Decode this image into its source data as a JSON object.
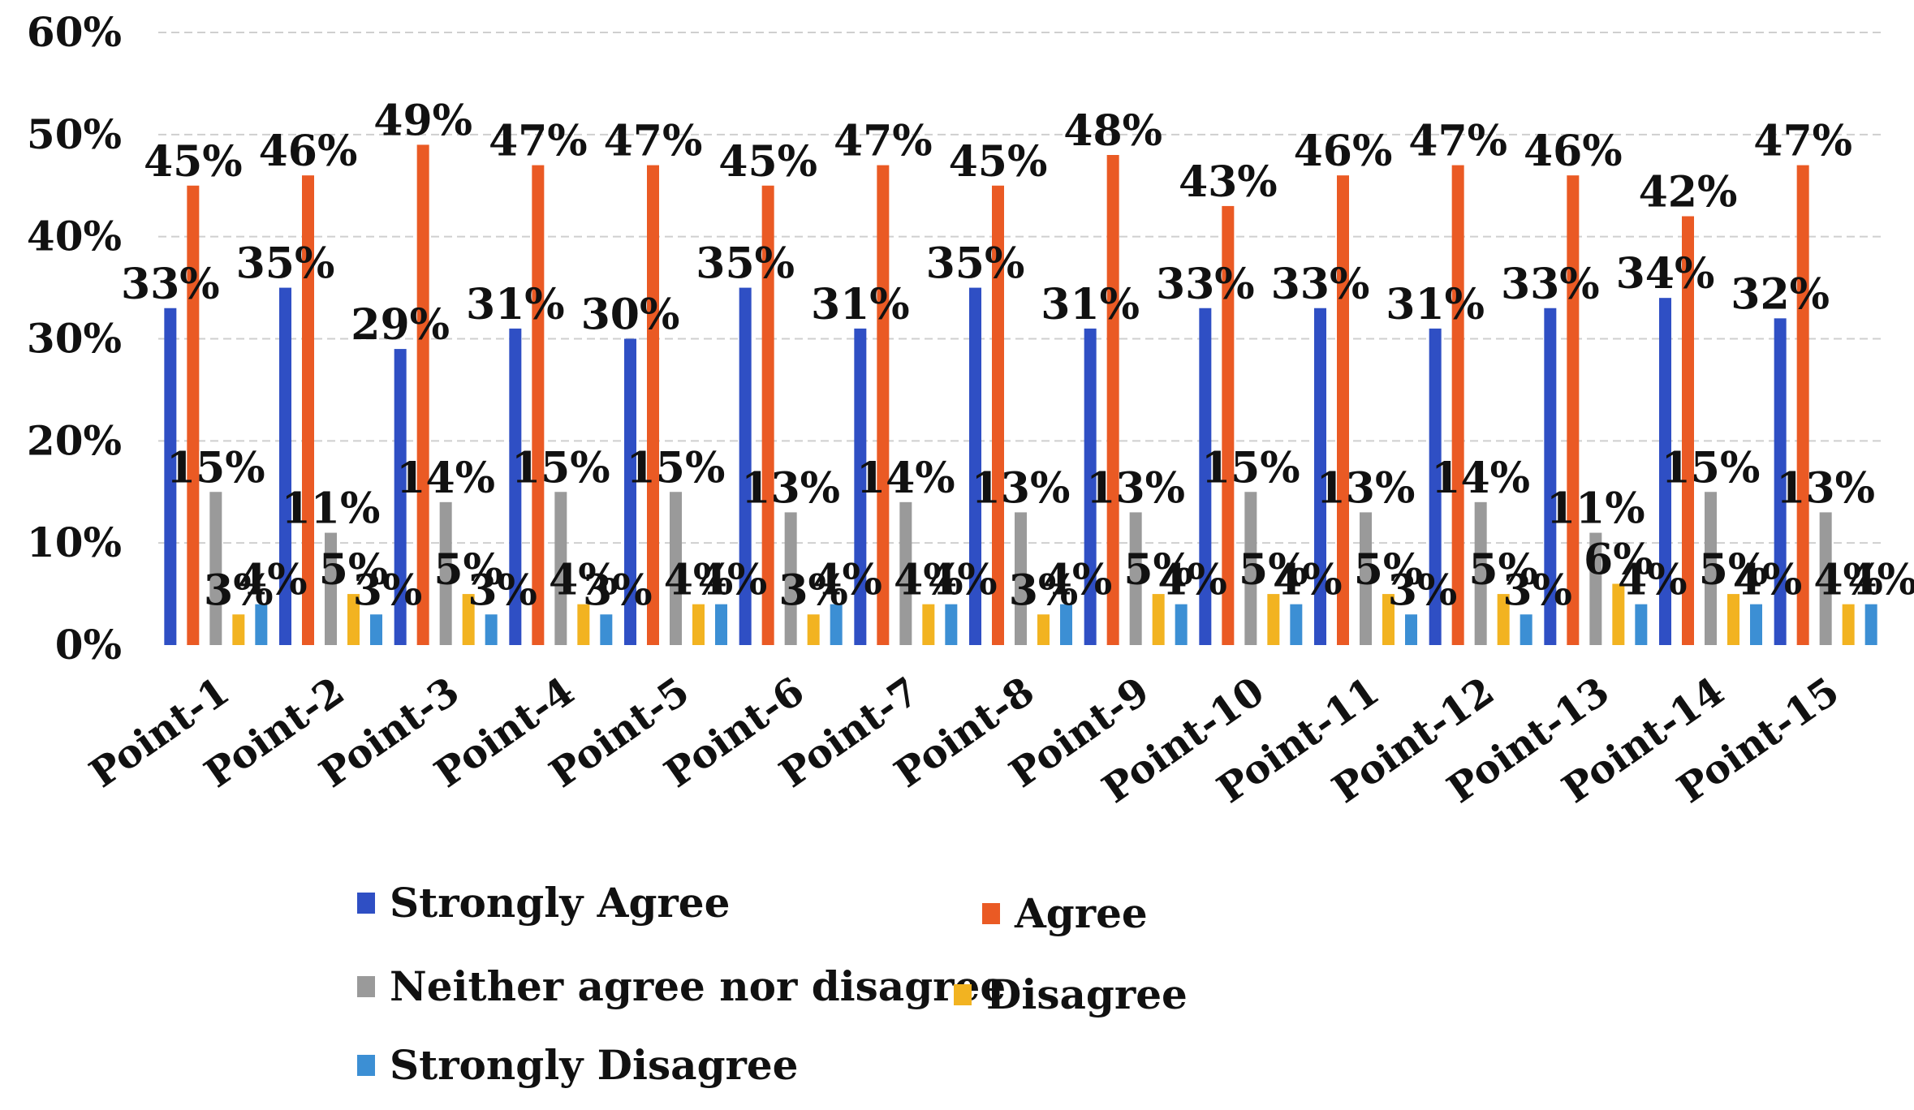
{
  "chart_data": {
    "type": "bar",
    "categories": [
      "Point-1",
      "Point-2",
      "Point-3",
      "Point-4",
      "Point-5",
      "Point-6",
      "Point-7",
      "Point-8",
      "Point-9",
      "Point-10",
      "Point-11",
      "Point-12",
      "Point-13",
      "Point-14",
      "Point-15"
    ],
    "series": [
      {
        "name": "Strongly Agree",
        "color": "#2f4fc4",
        "values": [
          33,
          35,
          29,
          31,
          30,
          35,
          31,
          35,
          31,
          33,
          33,
          31,
          33,
          34,
          32
        ]
      },
      {
        "name": "Agree",
        "color": "#ea5a24",
        "values": [
          45,
          46,
          49,
          47,
          47,
          45,
          47,
          45,
          48,
          43,
          46,
          47,
          46,
          42,
          47
        ]
      },
      {
        "name": "Neither agree nor disagree",
        "color": "#9a9a9a",
        "values": [
          15,
          11,
          14,
          15,
          15,
          13,
          14,
          13,
          13,
          15,
          13,
          14,
          11,
          15,
          13
        ]
      },
      {
        "name": "Disagree",
        "color": "#f2b321",
        "values": [
          3,
          5,
          5,
          4,
          4,
          3,
          4,
          3,
          5,
          5,
          5,
          5,
          6,
          5,
          4
        ]
      },
      {
        "name": "Strongly Disagree",
        "color": "#3c8fd4",
        "values": [
          4,
          3,
          3,
          3,
          4,
          4,
          4,
          4,
          4,
          4,
          3,
          3,
          4,
          4,
          4
        ]
      }
    ],
    "yticks": [
      "0%",
      "10%",
      "20%",
      "30%",
      "40%",
      "50%",
      "60%"
    ],
    "ylim": [
      0,
      60
    ],
    "grid": true,
    "legend_position": "bottom",
    "title": "",
    "xlabel": "",
    "ylabel": ""
  }
}
